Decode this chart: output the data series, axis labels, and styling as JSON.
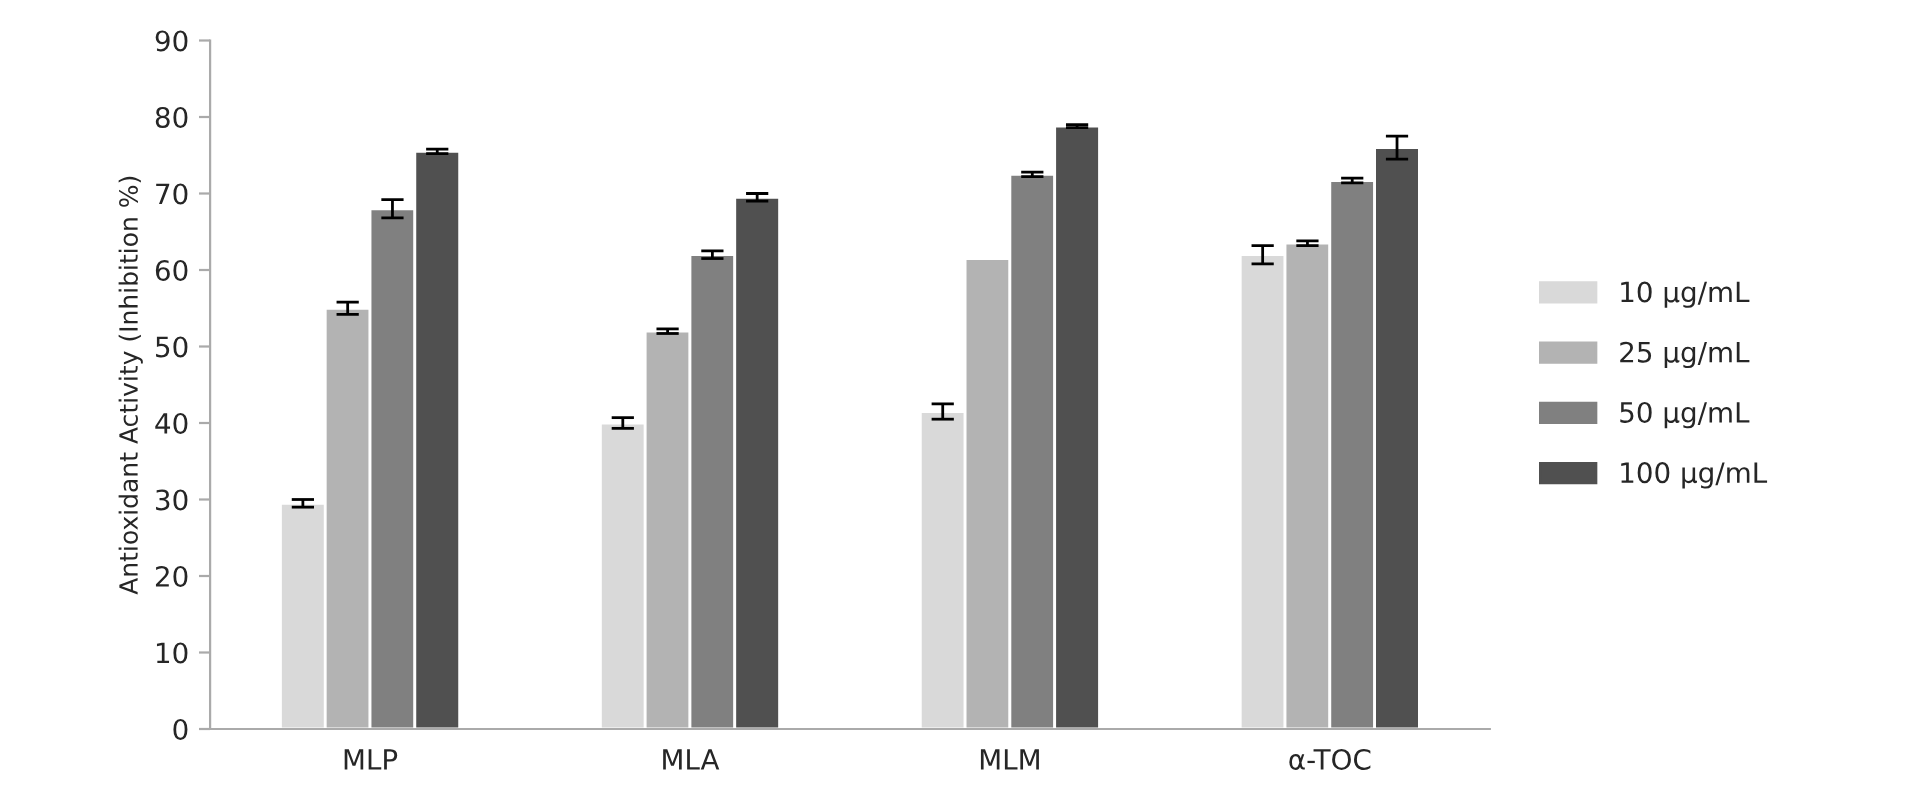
{
  "chart_data": {
    "type": "bar",
    "ylabel": "Antioxidant Activity (Inhibition %)",
    "categories": [
      "MLP",
      "MLA",
      "MLM",
      "α-TOC"
    ],
    "series": [
      {
        "name": "10 µg/mL",
        "color": "#d9d9d9",
        "values": [
          29.5,
          40,
          41.5,
          62
        ],
        "errors": [
          0.5,
          0.7,
          1,
          1.2
        ]
      },
      {
        "name": "25 µg/mL",
        "color": "#b3b3b3",
        "values": [
          55,
          52,
          61.5,
          63.5
        ],
        "errors": [
          0.8,
          0.3,
          null,
          0.3
        ]
      },
      {
        "name": "50 µg/mL",
        "color": "#808080",
        "values": [
          68,
          62,
          72.5,
          71.7
        ],
        "errors": [
          1.2,
          0.5,
          0.3,
          0.3
        ]
      },
      {
        "name": "100 µg/mL",
        "color": "#505050",
        "values": [
          75.5,
          69.5,
          78.8,
          76
        ],
        "errors": [
          0.3,
          0.5,
          0.2,
          1.5
        ]
      }
    ],
    "ylim": [
      0,
      90
    ],
    "yticks": [
      0,
      10,
      20,
      30,
      40,
      50,
      60,
      70,
      80,
      90
    ],
    "grid": false,
    "legend": "right"
  }
}
